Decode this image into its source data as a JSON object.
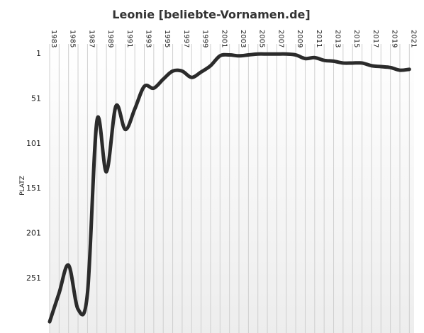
{
  "chart_data": {
    "type": "line",
    "title": "Leonie [beliebte-Vornamen.de]",
    "xlabel": "",
    "ylabel": "PLATZ",
    "x_ticks": [
      1983,
      1985,
      1987,
      1989,
      1991,
      1993,
      1995,
      1997,
      1999,
      2001,
      2003,
      2005,
      2007,
      2009,
      2011,
      2013,
      2015,
      2017,
      2019,
      2021
    ],
    "y_ticks": [
      1,
      51,
      101,
      151,
      201,
      251
    ],
    "y_reversed": true,
    "ylim": [
      1,
      300
    ],
    "xlim": [
      1983,
      2021.5
    ],
    "grid": "vertical",
    "series": [
      {
        "name": "",
        "color": "#2b2b2b",
        "x": [
          1983,
          1984,
          1985,
          1986,
          1987,
          1988,
          1989,
          1990,
          1991,
          1992,
          1993,
          1994,
          1995,
          1996,
          1997,
          1998,
          1999,
          2000,
          2001,
          2002,
          2003,
          2004,
          2005,
          2006,
          2007,
          2008,
          2009,
          2010,
          2011,
          2012,
          2013,
          2014,
          2015,
          2016,
          2017,
          2018,
          2019,
          2020,
          2021
        ],
        "y": [
          300,
          268,
          237,
          286,
          268,
          76,
          133,
          60,
          86,
          63,
          38,
          40,
          30,
          21,
          21,
          28,
          22,
          15,
          4,
          3,
          4,
          3,
          2,
          2,
          2,
          2,
          3,
          7,
          6,
          9,
          10,
          12,
          12,
          12,
          15,
          16,
          17,
          20,
          19
        ]
      }
    ]
  }
}
